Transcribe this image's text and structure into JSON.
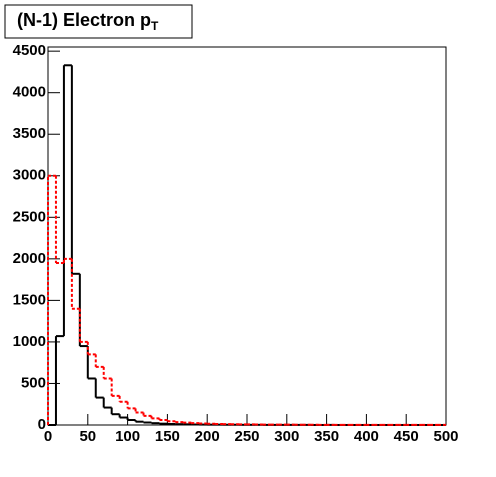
{
  "chart_data": {
    "type": "histogram",
    "title": "(N-1) Electron p",
    "title_subscript": "T",
    "bins": [
      0,
      10,
      20,
      30,
      40,
      50,
      60,
      70,
      80,
      90,
      100,
      110,
      120,
      130,
      140,
      150,
      160,
      170,
      180,
      190,
      200,
      210,
      220,
      230,
      240,
      250,
      260,
      270,
      280,
      290,
      300,
      310,
      320,
      330,
      340,
      350,
      360,
      370,
      380,
      390,
      400,
      410,
      420,
      430,
      440,
      450,
      460,
      470,
      480,
      490,
      500
    ],
    "series": [
      {
        "color": "#000000",
        "line_style": "solid",
        "values": [
          0,
          1070,
          4330,
          1820,
          950,
          560,
          330,
          210,
          130,
          90,
          60,
          40,
          30,
          22,
          16,
          12,
          10,
          8,
          6,
          5,
          4,
          4,
          3,
          3,
          2,
          2,
          2,
          1,
          1,
          1,
          1,
          1,
          1,
          0,
          0,
          1,
          0,
          0,
          0,
          0,
          0,
          0,
          0,
          0,
          0,
          0,
          0,
          0,
          0,
          0
        ]
      },
      {
        "color": "#ff0000",
        "line_style": "dashed",
        "values": [
          3000,
          1950,
          2000,
          1400,
          1000,
          850,
          700,
          560,
          350,
          280,
          200,
          150,
          110,
          80,
          60,
          45,
          35,
          28,
          22,
          18,
          15,
          12,
          10,
          9,
          8,
          7,
          6,
          5,
          5,
          4,
          4,
          3,
          3,
          3,
          2,
          2,
          2,
          2,
          2,
          2,
          1,
          1,
          1,
          1,
          1,
          1,
          1,
          1,
          1,
          1
        ]
      }
    ],
    "xlim": [
      0,
      500
    ],
    "xticks": [
      0,
      50,
      100,
      150,
      200,
      250,
      300,
      350,
      400,
      450,
      500
    ],
    "ylim": [
      0,
      4550
    ],
    "yticks": [
      0,
      500,
      1000,
      1500,
      2000,
      2500,
      3000,
      3500,
      4000,
      4500
    ]
  }
}
